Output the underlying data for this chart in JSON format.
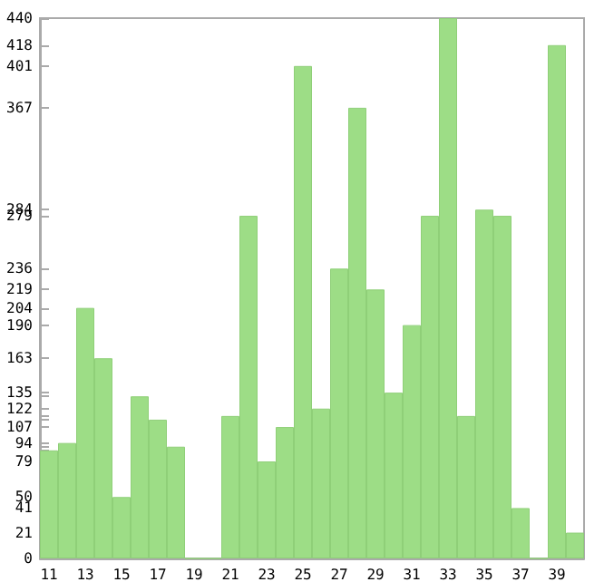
{
  "chart_data": {
    "type": "bar",
    "categories": [
      "11",
      null,
      "13",
      null,
      "15",
      null,
      "17",
      null,
      "19",
      null,
      "21",
      null,
      "23",
      null,
      "25",
      null,
      "27",
      null,
      "29",
      null,
      "31",
      null,
      "33",
      null,
      "35",
      null,
      "37",
      null,
      "39",
      null
    ],
    "values": [
      88,
      94,
      204,
      163,
      50,
      132,
      113,
      91,
      0,
      0,
      116,
      279,
      79,
      107,
      401,
      122,
      236,
      367,
      219,
      135,
      190,
      279,
      440,
      116,
      284,
      279,
      41,
      0,
      418,
      21
    ],
    "color": "#9ddd86",
    "ylim": [
      0,
      440
    ],
    "yticks": [
      0,
      21,
      41,
      50,
      79,
      {
        "value": 88,
        "label": null
      },
      {
        "value": 91,
        "label": null
      },
      94,
      107,
      {
        "value": 113,
        "label": null
      },
      {
        "value": 116,
        "label": null
      },
      122,
      {
        "value": 132,
        "label": null
      },
      135,
      163,
      190,
      204,
      219,
      236,
      279,
      284,
      367,
      401,
      418,
      440
    ]
  }
}
